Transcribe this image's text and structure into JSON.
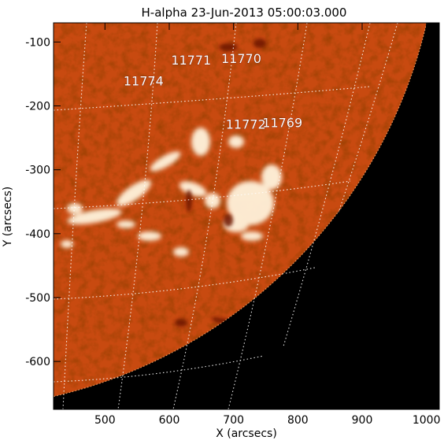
{
  "title": "H-alpha 23-Jun-2013 05:00:03.000",
  "x_axis": {
    "label": "X (arcsecs)",
    "ticks": [
      {
        "value": 500,
        "label": "500"
      },
      {
        "value": 600,
        "label": "600"
      },
      {
        "value": 700,
        "label": "700"
      },
      {
        "value": 800,
        "label": "800"
      },
      {
        "value": 900,
        "label": "900"
      },
      {
        "value": 1000,
        "label": "1000"
      }
    ],
    "range": [
      420,
      1020
    ]
  },
  "y_axis": {
    "label": "Y (arcsecs)",
    "ticks": [
      {
        "value": -100,
        "label": "-100"
      },
      {
        "value": -200,
        "label": "-200"
      },
      {
        "value": -300,
        "label": "-300"
      },
      {
        "value": -400,
        "label": "-400"
      },
      {
        "value": -500,
        "label": "-500"
      },
      {
        "value": -600,
        "label": "-600"
      }
    ],
    "range": [
      -675,
      -70
    ]
  },
  "active_regions": [
    {
      "label": "11771",
      "x": 634,
      "y": -135
    },
    {
      "label": "11770",
      "x": 712,
      "y": -133
    },
    {
      "label": "11774",
      "x": 560,
      "y": -168
    },
    {
      "label": "11772",
      "x": 719,
      "y": -236
    },
    {
      "label": "11769",
      "x": 776,
      "y": -233
    }
  ],
  "colors": {
    "disk": "#c84a10",
    "disk_dark": "#8f2300",
    "plage": "#fff6e6",
    "space": "#000000",
    "grid": "#ffffff"
  }
}
